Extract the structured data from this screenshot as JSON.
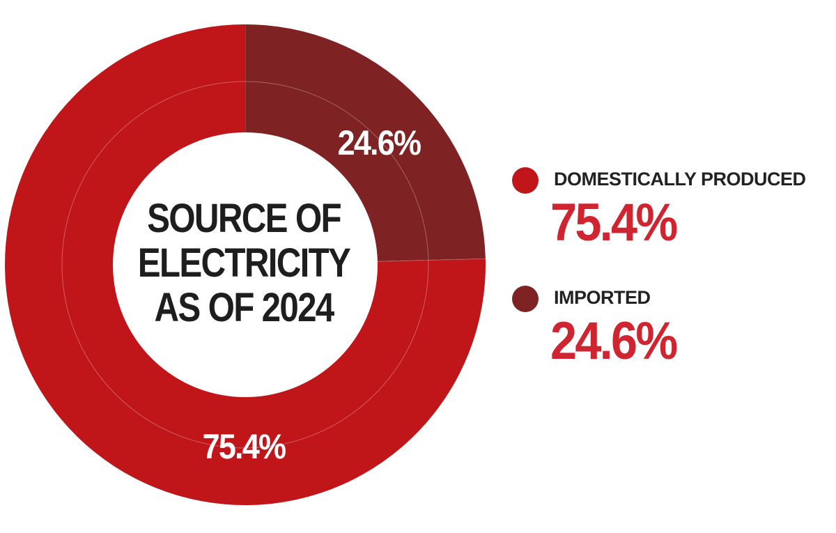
{
  "chart_data": {
    "type": "pie",
    "title": "SOURCE OF ELECTRICITY AS OF 2024",
    "title_lines": [
      "SOURCE OF",
      "ELECTRICITY",
      "AS OF 2024"
    ],
    "slices": [
      {
        "name": "IMPORTED",
        "value": 24.6,
        "label": "24.6%",
        "color": "#7e2224"
      },
      {
        "name": "DOMESTICALLY PRODUCED",
        "value": 75.4,
        "label": "75.4%",
        "color": "#c0161a"
      }
    ],
    "legend": [
      {
        "name": "DOMESTICALLY PRODUCED",
        "value_label": "75.4%",
        "color": "#c0161a"
      },
      {
        "name": "IMPORTED",
        "value_label": "24.6%",
        "color": "#7e2224"
      }
    ],
    "legend_value_color": "#cf2530",
    "legend_placement": "right"
  }
}
